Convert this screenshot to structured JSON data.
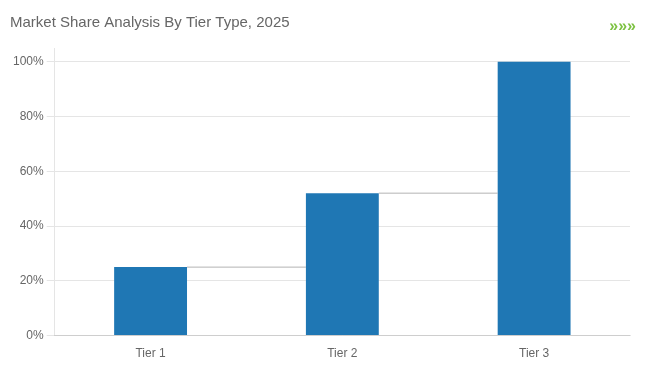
{
  "chart_data": {
    "type": "bar",
    "title": "Market Share Analysis By Tier Type, 2025",
    "categories": [
      "Tier 1",
      "Tier 2",
      "Tier 3"
    ],
    "values": [
      25,
      52,
      100
    ],
    "color": "#1f77b4",
    "ylim": [
      0,
      105
    ],
    "yticks": [
      {
        "value": 0,
        "label": "0%"
      },
      {
        "value": 20,
        "label": "20%"
      },
      {
        "value": 40,
        "label": "40%"
      },
      {
        "value": 60,
        "label": "60%"
      },
      {
        "value": 80,
        "label": "80%"
      },
      {
        "value": 100,
        "label": "100%"
      }
    ],
    "grid": true,
    "annotations": [
      {
        "text": "»»»",
        "color": "#7DC242"
      }
    ]
  }
}
